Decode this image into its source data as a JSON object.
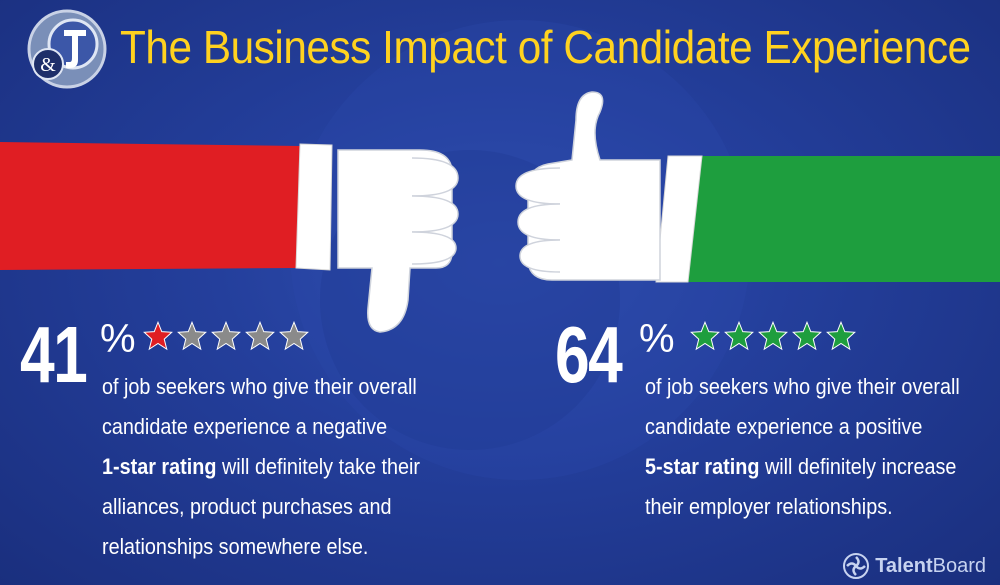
{
  "header": {
    "logo_text": "&",
    "title": "The Business Impact of Candidate Experience"
  },
  "colors": {
    "background": "#243f9c",
    "title": "#ffd21f",
    "negative": "#e01e23",
    "positive": "#1e9e3e",
    "star_inactive": "#8a8a8a"
  },
  "negative_stat": {
    "value": "41",
    "percent_sign": "%",
    "rating_stars": 1,
    "total_stars": 5,
    "icon": "thumbs-down-icon",
    "line1": "of job seekers who give their overall",
    "line2": "candidate experience a negative",
    "line3_bold": "1-star rating",
    "line3_rest": " will definitely take their",
    "line4": "alliances, product purchases and",
    "line5": "relationships somewhere else."
  },
  "positive_stat": {
    "value": "64",
    "percent_sign": "%",
    "rating_stars": 5,
    "total_stars": 5,
    "icon": "thumbs-up-icon",
    "line1": "of job seekers who give their overall",
    "line2": "candidate experience a positive",
    "line3_bold": "5-star rating",
    "line3_rest": " will definitely increase",
    "line4": "their employer relationships."
  },
  "footer": {
    "brand_name": "Talent",
    "brand_suffix": "Board"
  }
}
